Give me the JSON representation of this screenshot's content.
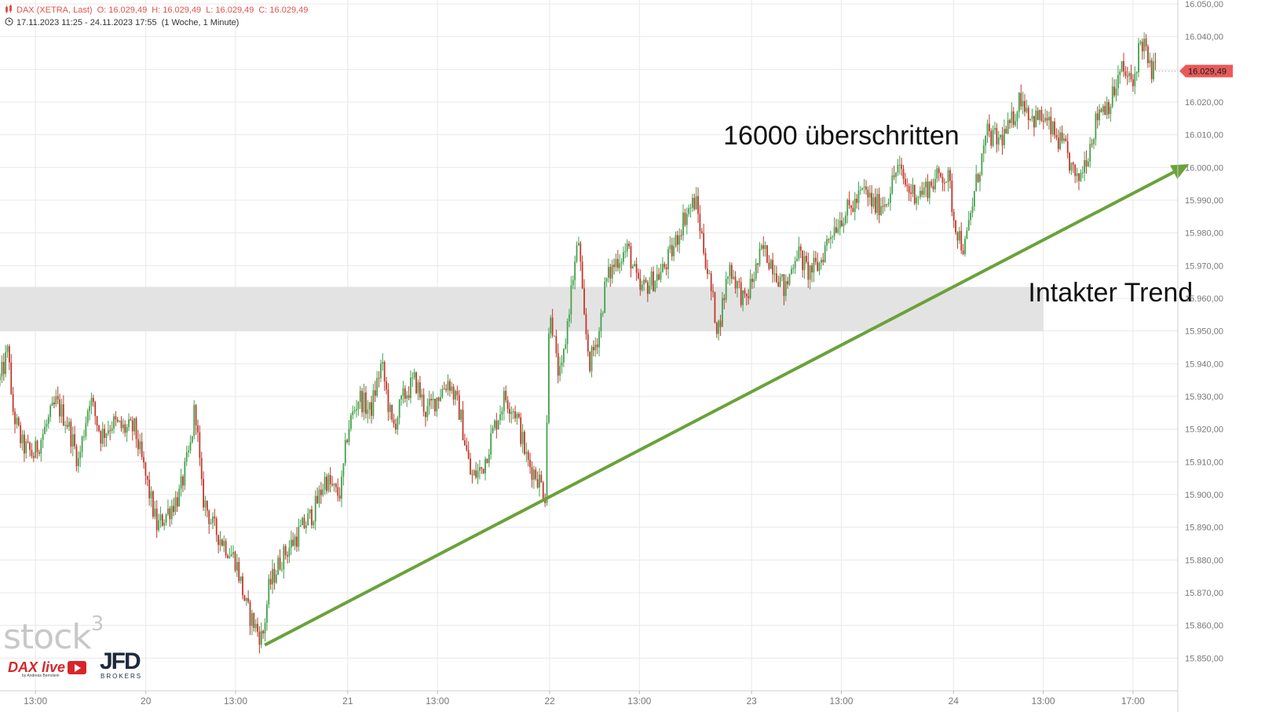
{
  "header": {
    "symbol": "DAX (XETRA, Last)",
    "open": "O: 16.029,49",
    "high": "H: 16.029,49",
    "low": "L: 16.029,49",
    "close": "C: 16.029,49",
    "range": "17.11.2023 11:25 - 24.11.2023 17:55",
    "interval": "(1 Woche, 1 Minute)"
  },
  "watermark": {
    "brand": "stock",
    "sup": "3",
    "daxlive": "DAX live",
    "daxlive_sub": "by Andreas Bernstein",
    "jfd": "JFD",
    "jfd_sub": "BROKERS"
  },
  "chart_data": {
    "type": "line",
    "title": "",
    "xlabel": "",
    "ylabel": "",
    "ylim": [
      15840,
      16050
    ],
    "y_ticks": [
      15850,
      15860,
      15870,
      15880,
      15890,
      15900,
      15910,
      15920,
      15930,
      15940,
      15950,
      15960,
      15970,
      15980,
      15990,
      16000,
      16010,
      16020,
      16030,
      16040,
      16050
    ],
    "y_tick_labels": [
      "15.850,00",
      "15.860,00",
      "15.870,00",
      "15.880,00",
      "15.890,00",
      "15.900,00",
      "15.910,00",
      "15.920,00",
      "15.930,00",
      "15.940,00",
      "15.950,00",
      "15.960,00",
      "15.970,00",
      "15.980,00",
      "15.990,00",
      "16.000,00",
      "16.010,00",
      "16.020,00",
      "16.030,00",
      "16.040,00",
      "16.050,00"
    ],
    "x_ticks": [
      {
        "t": 1.58,
        "label": "13:00"
      },
      {
        "t": 6.5,
        "label": "20"
      },
      {
        "t": 10.5,
        "label": "13:00"
      },
      {
        "t": 15.5,
        "label": "21"
      },
      {
        "t": 19.5,
        "label": "13:00"
      },
      {
        "t": 24.5,
        "label": "22"
      },
      {
        "t": 28.5,
        "label": "13:00"
      },
      {
        "t": 33.5,
        "label": "23"
      },
      {
        "t": 37.5,
        "label": "13:00"
      },
      {
        "t": 42.5,
        "label": "24"
      },
      {
        "t": 46.5,
        "label": "13:00"
      },
      {
        "t": 50.5,
        "label": "17:00"
      }
    ],
    "x_range": [
      0,
      52.5
    ],
    "series": [
      {
        "values": [
          [
            0,
            15935
          ],
          [
            0.4,
            15945
          ],
          [
            0.5,
            15928
          ],
          [
            0.7,
            15922
          ],
          [
            1.0,
            15915
          ],
          [
            1.5,
            15912
          ],
          [
            2.0,
            15920
          ],
          [
            2.5,
            15928
          ],
          [
            3.0,
            15922
          ],
          [
            3.5,
            15910
          ],
          [
            4.0,
            15930
          ],
          [
            4.5,
            15918
          ],
          [
            5.0,
            15922
          ],
          [
            5.5,
            15920
          ],
          [
            6.0,
            15920
          ],
          [
            6.5,
            15905
          ],
          [
            7.0,
            15890
          ],
          [
            7.5,
            15895
          ],
          [
            8.0,
            15900
          ],
          [
            8.5,
            15915
          ],
          [
            8.7,
            15928
          ],
          [
            9.0,
            15900
          ],
          [
            9.5,
            15890
          ],
          [
            10.0,
            15885
          ],
          [
            10.5,
            15880
          ],
          [
            11.0,
            15865
          ],
          [
            11.5,
            15858
          ],
          [
            11.7,
            15856
          ],
          [
            12.0,
            15872
          ],
          [
            12.5,
            15880
          ],
          [
            13.0,
            15885
          ],
          [
            13.5,
            15890
          ],
          [
            14.0,
            15895
          ],
          [
            14.5,
            15905
          ],
          [
            15.0,
            15900
          ],
          [
            15.2,
            15901
          ],
          [
            15.5,
            15920
          ],
          [
            16.0,
            15930
          ],
          [
            16.5,
            15925
          ],
          [
            17.0,
            15940
          ],
          [
            17.5,
            15920
          ],
          [
            18.0,
            15930
          ],
          [
            18.5,
            15935
          ],
          [
            19.0,
            15925
          ],
          [
            19.5,
            15930
          ],
          [
            20.0,
            15935
          ],
          [
            20.5,
            15925
          ],
          [
            21.0,
            15905
          ],
          [
            21.5,
            15908
          ],
          [
            22.0,
            15920
          ],
          [
            22.5,
            15930
          ],
          [
            23.0,
            15925
          ],
          [
            23.5,
            15910
          ],
          [
            24.0,
            15905
          ],
          [
            24.3,
            15900
          ],
          [
            24.5,
            15960
          ],
          [
            24.8,
            15940
          ],
          [
            25.0,
            15935
          ],
          [
            25.5,
            15965
          ],
          [
            25.8,
            15978
          ],
          [
            26.0,
            15955
          ],
          [
            26.3,
            15940
          ],
          [
            26.7,
            15950
          ],
          [
            27.0,
            15965
          ],
          [
            27.5,
            15972
          ],
          [
            28.0,
            15975
          ],
          [
            28.5,
            15962
          ],
          [
            29.0,
            15965
          ],
          [
            29.5,
            15968
          ],
          [
            30.0,
            15975
          ],
          [
            30.5,
            15985
          ],
          [
            31.0,
            15990
          ],
          [
            31.5,
            15970
          ],
          [
            32.0,
            15950
          ],
          [
            32.5,
            15970
          ],
          [
            33.0,
            15962
          ],
          [
            33.2,
            15958
          ],
          [
            33.5,
            15965
          ],
          [
            34.0,
            15975
          ],
          [
            34.5,
            15970
          ],
          [
            35.0,
            15962
          ],
          [
            35.5,
            15975
          ],
          [
            36.0,
            15968
          ],
          [
            36.5,
            15970
          ],
          [
            37.0,
            15980
          ],
          [
            37.5,
            15985
          ],
          [
            38.0,
            15988
          ],
          [
            38.5,
            15993
          ],
          [
            39.0,
            15988
          ],
          [
            39.5,
            15990
          ],
          [
            40.0,
            16000
          ],
          [
            40.5,
            15993
          ],
          [
            41.0,
            15992
          ],
          [
            41.5,
            15995
          ],
          [
            42.0,
            15998
          ],
          [
            42.3,
            15996
          ],
          [
            42.5,
            15985
          ],
          [
            42.8,
            15978
          ],
          [
            43.0,
            15975
          ],
          [
            43.5,
            15995
          ],
          [
            44.0,
            16010
          ],
          [
            44.5,
            16008
          ],
          [
            45.0,
            16012
          ],
          [
            45.5,
            16022
          ],
          [
            46.0,
            16015
          ],
          [
            46.5,
            16015
          ],
          [
            47.0,
            16010
          ],
          [
            47.5,
            16005
          ],
          [
            48.0,
            15995
          ],
          [
            48.5,
            16005
          ],
          [
            49.0,
            16018
          ],
          [
            49.5,
            16020
          ],
          [
            50.0,
            16030
          ],
          [
            50.5,
            16025
          ],
          [
            50.8,
            16038
          ],
          [
            51.0,
            16038
          ],
          [
            51.2,
            16030
          ],
          [
            51.5,
            16029.49
          ]
        ]
      }
    ],
    "last_price": 16029.49,
    "last_price_label": "16.029,49",
    "zone": {
      "y_low": 15950,
      "y_high": 15963.5,
      "x_end": 46.5
    },
    "trendline": {
      "from": [
        11.8,
        15854
      ],
      "to": [
        53,
        16001
      ]
    },
    "annotations": [
      {
        "text": "16000 überschritten",
        "x": 37.5,
        "y": 16007
      },
      {
        "text": "Intakter Trend",
        "x": 49.5,
        "y": 15959
      }
    ],
    "colors": {
      "up": "#41a24b",
      "down": "#c0392b",
      "grid": "#e8e8e8",
      "zone": "#e3e3e3",
      "trend": "#6aa23a",
      "price_tag": "#e85a5a",
      "axis_text": "#777777"
    }
  }
}
